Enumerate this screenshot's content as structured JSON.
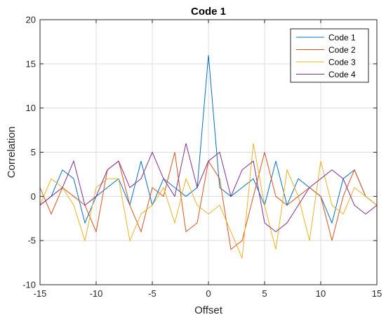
{
  "chart_data": {
    "type": "line",
    "title": "Code 1",
    "xlabel": "Offset",
    "ylabel": "Correlation",
    "xlim": [
      -15,
      15
    ],
    "ylim": [
      -10,
      20
    ],
    "xticks": [
      -15,
      -10,
      -5,
      0,
      5,
      10,
      15
    ],
    "yticks": [
      -10,
      -5,
      0,
      5,
      10,
      15,
      20
    ],
    "grid": true,
    "legend_position": "top-right",
    "x": [
      -15,
      -14,
      -13,
      -12,
      -11,
      -10,
      -9,
      -8,
      -7,
      -6,
      -5,
      -4,
      -3,
      -2,
      -1,
      0,
      1,
      2,
      3,
      4,
      5,
      6,
      7,
      8,
      9,
      10,
      11,
      12,
      13,
      14,
      15
    ],
    "series": [
      {
        "name": "Code 1",
        "color": "#0072BD",
        "values": [
          -1,
          0,
          3,
          2,
          -3,
          0,
          1,
          2,
          -1,
          4,
          -1,
          2,
          1,
          0,
          1,
          16,
          1,
          0,
          1,
          2,
          -1,
          4,
          -1,
          2,
          1,
          0,
          -3,
          2,
          3,
          0,
          -1
        ]
      },
      {
        "name": "Code 2",
        "color": "#D95319",
        "values": [
          1,
          -2,
          1,
          0,
          -1,
          -4,
          3,
          4,
          -1,
          -4,
          1,
          0,
          5,
          -4,
          -3,
          4,
          2,
          -6,
          -5,
          0,
          5,
          0,
          -1,
          0,
          1,
          0,
          -5,
          0,
          3,
          0,
          -1
        ]
      },
      {
        "name": "Code 3",
        "color": "#EDB120",
        "values": [
          -1,
          2,
          1,
          -1,
          -5,
          1,
          2,
          2,
          -5,
          -2,
          -1,
          1,
          -3,
          2,
          -1,
          -2,
          -1,
          -4,
          -7,
          6,
          -1,
          -6,
          3,
          0,
          -5,
          4,
          -1,
          -2,
          1,
          0,
          -1
        ]
      },
      {
        "name": "Code 4",
        "color": "#7E2F8E",
        "values": [
          -1,
          0,
          1,
          4,
          -1,
          0,
          3,
          4,
          1,
          2,
          5,
          2,
          0,
          6,
          1,
          4,
          5,
          0,
          3,
          4,
          -3,
          -4,
          -3,
          -1,
          1,
          2,
          3,
          2,
          -1,
          -2,
          -1
        ]
      }
    ]
  }
}
